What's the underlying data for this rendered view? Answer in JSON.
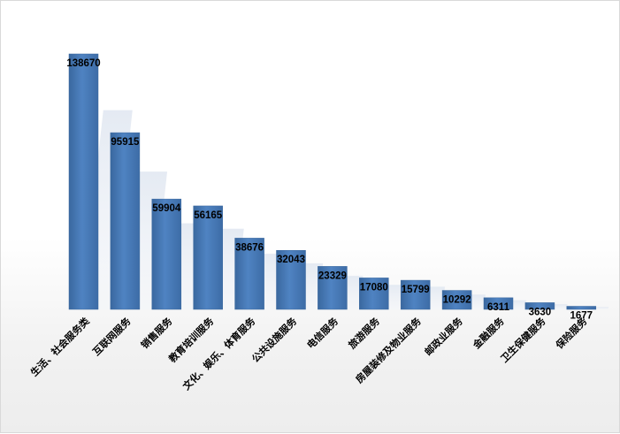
{
  "chart_data": {
    "type": "bar",
    "categories": [
      "生活、社会服务类",
      "互联网服务",
      "销售服务",
      "教育培训服务",
      "文化、娱乐、体育服务",
      "公共设施服务",
      "电信服务",
      "旅游服务",
      "房屋装修及物业服务",
      "邮政业服务",
      "金融服务",
      "卫生保健服务",
      "保险服务"
    ],
    "values": [
      138670,
      95915,
      59904,
      56165,
      38676,
      32043,
      23329,
      17080,
      15799,
      10292,
      6311,
      3630,
      1677
    ],
    "data_labels": [
      "138670",
      "95915",
      "59904",
      "56165",
      "38676",
      "32043",
      "23329",
      "17080",
      "15799",
      "10292",
      "6311",
      "3630",
      "1677"
    ],
    "ylim": [
      0,
      138670
    ],
    "grid": false,
    "legend": "none",
    "bar_color": "#4a7ebb",
    "bar_dark": "#3a689f",
    "shadow_color": "#dde4ee",
    "label_color": "#000000"
  }
}
